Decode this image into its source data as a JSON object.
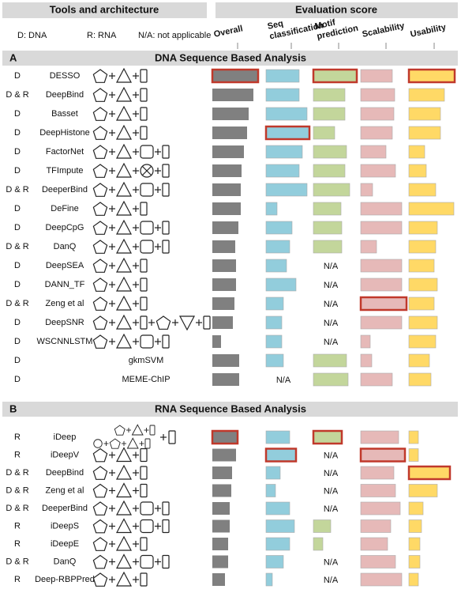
{
  "header": {
    "left_title": "Tools and architecture",
    "right_title": "Evaluation score",
    "legend": [
      "D: DNA",
      "R: RNA",
      "N/A: not applicable"
    ],
    "columns": [
      [
        "Overall"
      ],
      [
        "Seq",
        "classification"
      ],
      [
        "Motif",
        "prediction"
      ],
      [
        "Scalability"
      ],
      [
        "Usability"
      ]
    ],
    "colors": [
      "#808080",
      "#92cddc",
      "#c3d69b",
      "#e6b9b8",
      "#ffd966"
    ],
    "outline_color": "#c0392b",
    "xlim": [
      0,
      60
    ]
  },
  "panels": [
    {
      "label": "A",
      "title": "DNA Sequence Based Analysis",
      "rows": [
        {
          "type": "D",
          "tool": "DESSO",
          "scores": [
            58,
            42,
            55,
            40,
            58
          ],
          "outlined": [
            true,
            false,
            true,
            false,
            true
          ]
        },
        {
          "type": "D & R",
          "tool": "DeepBind",
          "scores": [
            52,
            42,
            40,
            43,
            45
          ],
          "outlined": [
            false,
            false,
            false,
            false,
            false
          ]
        },
        {
          "type": "D",
          "tool": "Basset",
          "scores": [
            46,
            52,
            40,
            42,
            40
          ],
          "outlined": [
            false,
            false,
            false,
            false,
            false
          ]
        },
        {
          "type": "D",
          "tool": "DeepHistone",
          "scores": [
            44,
            55,
            27,
            40,
            40
          ],
          "outlined": [
            false,
            true,
            false,
            false,
            false
          ]
        },
        {
          "type": "D",
          "tool": "FactorNet",
          "scores": [
            40,
            46,
            42,
            32,
            20
          ],
          "outlined": [
            false,
            false,
            false,
            false,
            false
          ]
        },
        {
          "type": "D",
          "tool": "TFImpute",
          "scores": [
            37,
            42,
            40,
            44,
            22
          ],
          "outlined": [
            false,
            false,
            false,
            false,
            false
          ]
        },
        {
          "type": "D & R",
          "tool": "DeeperBind",
          "scores": [
            36,
            52,
            46,
            15,
            34
          ],
          "outlined": [
            false,
            false,
            false,
            false,
            false
          ]
        },
        {
          "type": "D",
          "tool": "DeFine",
          "scores": [
            36,
            14,
            35,
            52,
            57
          ],
          "outlined": [
            false,
            false,
            false,
            false,
            false
          ]
        },
        {
          "type": "D",
          "tool": "DeepCpG",
          "scores": [
            33,
            33,
            36,
            52,
            36
          ],
          "outlined": [
            false,
            false,
            false,
            false,
            false
          ]
        },
        {
          "type": "D & R",
          "tool": "DanQ",
          "scores": [
            29,
            30,
            36,
            20,
            34
          ],
          "outlined": [
            false,
            false,
            false,
            false,
            false
          ]
        },
        {
          "type": "D",
          "tool": "DeepSEA",
          "scores": [
            30,
            26,
            "N/A",
            52,
            32
          ],
          "outlined": [
            false,
            false,
            false,
            false,
            false
          ]
        },
        {
          "type": "D",
          "tool": "DANN_TF",
          "scores": [
            30,
            38,
            "N/A",
            52,
            36
          ],
          "outlined": [
            false,
            false,
            false,
            false,
            false
          ]
        },
        {
          "type": "D & R",
          "tool": "Zeng et al",
          "scores": [
            28,
            22,
            "N/A",
            58,
            32
          ],
          "outlined": [
            false,
            false,
            false,
            true,
            false
          ]
        },
        {
          "type": "D",
          "tool": "DeepSNR",
          "scores": [
            26,
            20,
            "N/A",
            52,
            36
          ],
          "outlined": [
            false,
            false,
            false,
            false,
            false
          ]
        },
        {
          "type": "D",
          "tool": "WSCNNLSTM",
          "scores": [
            11,
            20,
            "N/A",
            12,
            34
          ],
          "outlined": [
            false,
            false,
            false,
            false,
            false
          ]
        },
        {
          "type": "D",
          "tool": "gkmSVM",
          "scores": [
            34,
            22,
            42,
            14,
            26
          ],
          "outlined": [
            false,
            false,
            false,
            false,
            false
          ]
        },
        {
          "type": "D",
          "tool": "MEME-ChIP",
          "scores": [
            34,
            "N/A",
            44,
            40,
            28
          ],
          "outlined": [
            false,
            false,
            false,
            false,
            false
          ]
        }
      ]
    },
    {
      "label": "B",
      "title": "RNA Sequence Based Analysis",
      "rows": [
        {
          "type": "R",
          "tool": "iDeep",
          "scores": [
            32,
            30,
            36,
            48,
            12
          ],
          "outlined": [
            true,
            false,
            true,
            false,
            false
          ]
        },
        {
          "type": "R",
          "tool": "iDeepV",
          "scores": [
            30,
            38,
            "N/A",
            56,
            12
          ],
          "outlined": [
            false,
            true,
            false,
            true,
            false
          ]
        },
        {
          "type": "D & R",
          "tool": "DeepBind",
          "scores": [
            25,
            18,
            "N/A",
            42,
            52
          ],
          "outlined": [
            false,
            false,
            false,
            false,
            true
          ]
        },
        {
          "type": "D & R",
          "tool": "Zeng et al",
          "scores": [
            24,
            12,
            "N/A",
            44,
            36
          ],
          "outlined": [
            false,
            false,
            false,
            false,
            false
          ]
        },
        {
          "type": "D & R",
          "tool": "DeeperBind",
          "scores": [
            22,
            30,
            "N/A",
            50,
            18
          ],
          "outlined": [
            false,
            false,
            false,
            false,
            false
          ]
        },
        {
          "type": "R",
          "tool": "iDeepS",
          "scores": [
            22,
            36,
            22,
            38,
            16
          ],
          "outlined": [
            false,
            false,
            false,
            false,
            false
          ]
        },
        {
          "type": "R",
          "tool": "iDeepE",
          "scores": [
            20,
            30,
            12,
            34,
            14
          ],
          "outlined": [
            false,
            false,
            false,
            false,
            false
          ]
        },
        {
          "type": "D & R",
          "tool": "DanQ",
          "scores": [
            20,
            22,
            "N/A",
            44,
            14
          ],
          "outlined": [
            false,
            false,
            false,
            false,
            false
          ]
        },
        {
          "type": "R",
          "tool": "Deep-RBPPred",
          "scores": [
            16,
            8,
            "N/A",
            52,
            12
          ],
          "outlined": [
            false,
            false,
            false,
            false,
            false
          ]
        }
      ]
    }
  ]
}
